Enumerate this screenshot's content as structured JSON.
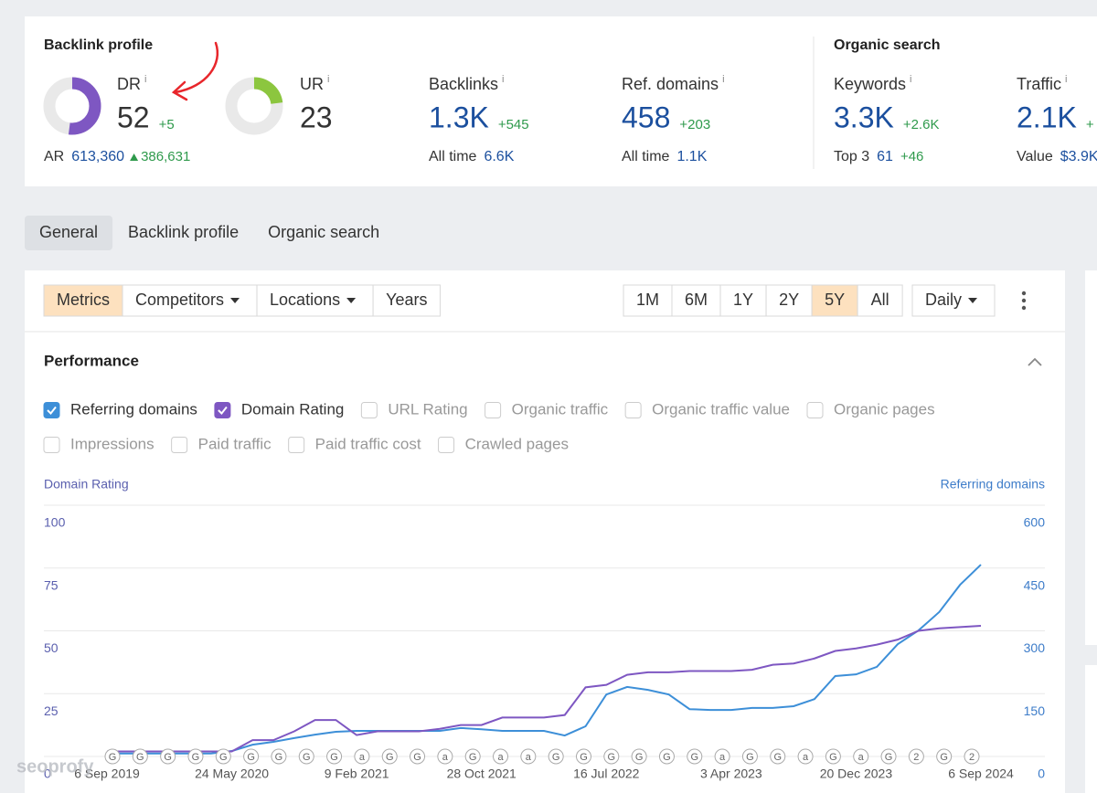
{
  "summary": {
    "backlink_title": "Backlink profile",
    "info": "i",
    "dr": {
      "label": "DR",
      "value": 52,
      "delta": "+5"
    },
    "ur": {
      "label": "UR",
      "value": 23
    },
    "ar": {
      "label": "AR",
      "value": "613,360",
      "delta": "386,631"
    },
    "backlinks": {
      "label": "Backlinks",
      "value": "1.3K",
      "delta": "+545",
      "sub_label": "All time",
      "sub_value": "6.6K"
    },
    "ref_domains": {
      "label": "Ref. domains",
      "value": "458",
      "delta": "+203",
      "sub_label": "All time",
      "sub_value": "1.1K"
    },
    "organic_title": "Organic search",
    "keywords": {
      "label": "Keywords",
      "value": "3.3K",
      "delta": "+2.6K",
      "sub_label": "Top 3",
      "sub_value": "61",
      "sub_delta": "+46"
    },
    "traffic": {
      "label": "Traffic",
      "value": "2.1K",
      "delta": "+",
      "sub_label": "Value",
      "sub_value": "$3.9K"
    }
  },
  "tabs": [
    "General",
    "Backlink profile",
    "Organic search"
  ],
  "toolbar": {
    "views": [
      "Metrics",
      "Competitors",
      "Locations",
      "Years"
    ],
    "ranges": [
      "1M",
      "6M",
      "1Y",
      "2Y",
      "5Y",
      "All"
    ],
    "interval": "Daily"
  },
  "performance": {
    "title": "Performance",
    "metrics": [
      {
        "label": "Referring domains",
        "checked": true
      },
      {
        "label": "Domain Rating",
        "checked": true
      },
      {
        "label": "URL Rating",
        "checked": false
      },
      {
        "label": "Organic traffic",
        "checked": false
      },
      {
        "label": "Organic traffic value",
        "checked": false
      },
      {
        "label": "Organic pages",
        "checked": false
      },
      {
        "label": "Impressions",
        "checked": false
      },
      {
        "label": "Paid traffic",
        "checked": false
      },
      {
        "label": "Paid traffic cost",
        "checked": false
      },
      {
        "label": "Crawled pages",
        "checked": false
      }
    ]
  },
  "chart_data": {
    "type": "line",
    "y_label": "Domain Rating",
    "y2_label": "Referring domains",
    "categories": [
      "6 Sep 2019",
      null,
      null,
      null,
      null,
      null,
      "24 May 2020",
      null,
      null,
      null,
      null,
      null,
      "9 Feb 2021",
      null,
      null,
      null,
      null,
      null,
      "28 Oct 2021",
      null,
      null,
      null,
      null,
      null,
      "16 Jul 2022",
      null,
      null,
      null,
      null,
      null,
      "3 Apr 2023",
      null,
      null,
      null,
      null,
      null,
      "20 Dec 2023",
      null,
      null,
      null,
      null,
      null,
      "6 Sep 2024"
    ],
    "series": [
      {
        "name": "Domain Rating",
        "color": "#7e57c2",
        "axis": "y",
        "values": [
          2,
          2,
          2,
          2,
          2,
          2,
          2,
          6.5,
          6.5,
          10,
          14.5,
          14.5,
          8.5,
          10,
          10,
          10,
          11,
          12.5,
          12.5,
          15.5,
          15.5,
          15.5,
          16.5,
          27.5,
          28.5,
          32.5,
          33.5,
          33.5,
          34,
          34,
          34,
          34.5,
          36.5,
          37,
          39,
          42,
          43,
          44.5,
          46.5,
          50,
          51,
          51.5,
          52
        ]
      },
      {
        "name": "Referring domains",
        "color": "#3d8fd8",
        "axis": "y2",
        "values": [
          7,
          7,
          7,
          7,
          7,
          7,
          13,
          28,
          35,
          44,
          52,
          59,
          61,
          61,
          61,
          61,
          61,
          68,
          65,
          61,
          61,
          61,
          50,
          72,
          148,
          166,
          159,
          148,
          113,
          111,
          111,
          116,
          116,
          120,
          137,
          192,
          196,
          214,
          268,
          301,
          345,
          410,
          458
        ]
      }
    ],
    "ylim": [
      0,
      100
    ],
    "yticks": [
      0,
      25,
      50,
      75,
      100
    ],
    "y2lim": [
      0,
      600
    ],
    "y2ticks": [
      0,
      150,
      300,
      450,
      600
    ],
    "grid": true,
    "event_markers": [
      "G",
      "G",
      "G",
      "G",
      "G",
      "G",
      "G",
      "G",
      "G",
      "a",
      "G",
      "G",
      "a",
      "G",
      "a",
      "a",
      "G",
      "G",
      "G",
      "G",
      "G",
      "G",
      "a",
      "G",
      "G",
      "a",
      "G",
      "a",
      "G",
      "2",
      "G",
      "2"
    ]
  },
  "watermark": "seoprofy"
}
